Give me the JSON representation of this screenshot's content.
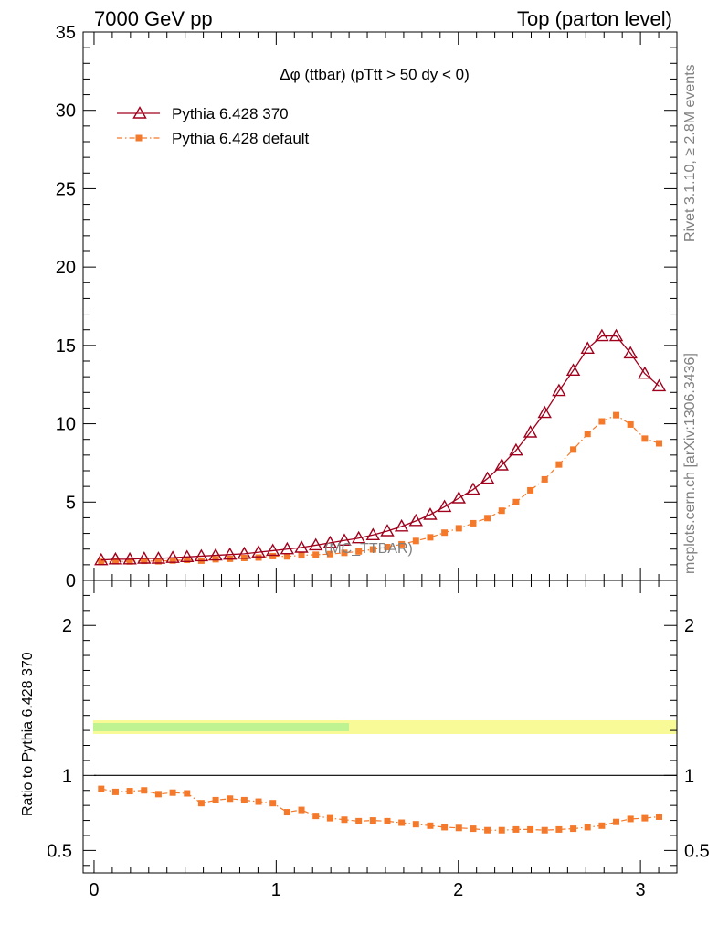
{
  "header": {
    "left": "7000 GeV pp",
    "right": "Top (parton level)"
  },
  "side": {
    "rivet": "Rivet 3.1.10, ≥ 2.8M events",
    "mcplots": "mcplots.cern.ch [arXiv:1306.3436]"
  },
  "watermark": "(MC_TTBAR)",
  "ratio_ylabel": "Ratio to Pythia 6.428 370",
  "chart_data": [
    {
      "type": "line",
      "title": "Δφ (ttbar) (pTtt > 50 dy < 0)",
      "xlim": [
        -0.06,
        3.2
      ],
      "ylim": [
        0,
        35
      ],
      "yticks": [
        0,
        5,
        10,
        15,
        20,
        25,
        30,
        35
      ],
      "legend": "top-left",
      "x": [
        0.0393,
        0.1178,
        0.1963,
        0.2749,
        0.3534,
        0.432,
        0.5105,
        0.589,
        0.6676,
        0.7461,
        0.8247,
        0.9032,
        0.9817,
        1.0603,
        1.1388,
        1.2174,
        1.2959,
        1.3744,
        1.453,
        1.5315,
        1.6101,
        1.6886,
        1.7671,
        1.8457,
        1.9242,
        2.0028,
        2.0813,
        2.1598,
        2.2384,
        2.3169,
        2.3955,
        2.474,
        2.5525,
        2.6311,
        2.7096,
        2.7882,
        2.8667,
        2.9452,
        3.0238,
        3.1023
      ],
      "series": [
        {
          "name": "Pythia 6.428 370",
          "color": "#a0001c",
          "marker": "open-triangle",
          "values": [
            1.3,
            1.35,
            1.35,
            1.4,
            1.4,
            1.45,
            1.5,
            1.55,
            1.6,
            1.65,
            1.7,
            1.8,
            1.9,
            2.0,
            2.1,
            2.25,
            2.4,
            2.55,
            2.7,
            2.9,
            3.15,
            3.45,
            3.8,
            4.2,
            4.7,
            5.25,
            5.8,
            6.5,
            7.35,
            8.3,
            9.45,
            10.7,
            12.1,
            13.4,
            14.8,
            15.6,
            15.6,
            14.5,
            13.2,
            12.4
          ]
        },
        {
          "name": "Pythia 6.428 default",
          "color": "#f5792a",
          "marker": "filled-square",
          "values": [
            1.18,
            1.22,
            1.21,
            1.25,
            1.22,
            1.27,
            1.31,
            1.26,
            1.35,
            1.38,
            1.43,
            1.46,
            1.55,
            1.53,
            1.6,
            1.64,
            1.68,
            1.76,
            1.85,
            1.98,
            2.13,
            2.31,
            2.52,
            2.75,
            3.05,
            3.33,
            3.65,
            3.98,
            4.45,
            5.0,
            5.75,
            6.45,
            7.4,
            8.35,
            9.35,
            10.15,
            10.55,
            9.95,
            9.05,
            8.75
          ]
        }
      ]
    },
    {
      "type": "line",
      "ylabel": "Ratio to Pythia 6.428 370",
      "xlim": [
        -0.06,
        3.2
      ],
      "ylim": [
        0.35,
        2.3
      ],
      "xticks": [
        0,
        1,
        2,
        3
      ],
      "yticks": [
        0.5,
        1,
        2
      ],
      "reference": 1.0,
      "series": [
        {
          "name": "Pythia 6.428 default",
          "color": "#f5792a",
          "marker": "filled-square",
          "values": [
            0.91,
            0.89,
            0.895,
            0.9,
            0.875,
            0.885,
            0.88,
            0.815,
            0.835,
            0.845,
            0.835,
            0.825,
            0.815,
            0.755,
            0.77,
            0.73,
            0.715,
            0.705,
            0.695,
            0.7,
            0.695,
            0.685,
            0.675,
            0.665,
            0.655,
            0.65,
            0.645,
            0.635,
            0.635,
            0.64,
            0.64,
            0.635,
            0.64,
            0.645,
            0.655,
            0.665,
            0.69,
            0.71,
            0.715,
            0.725
          ]
        }
      ]
    }
  ]
}
